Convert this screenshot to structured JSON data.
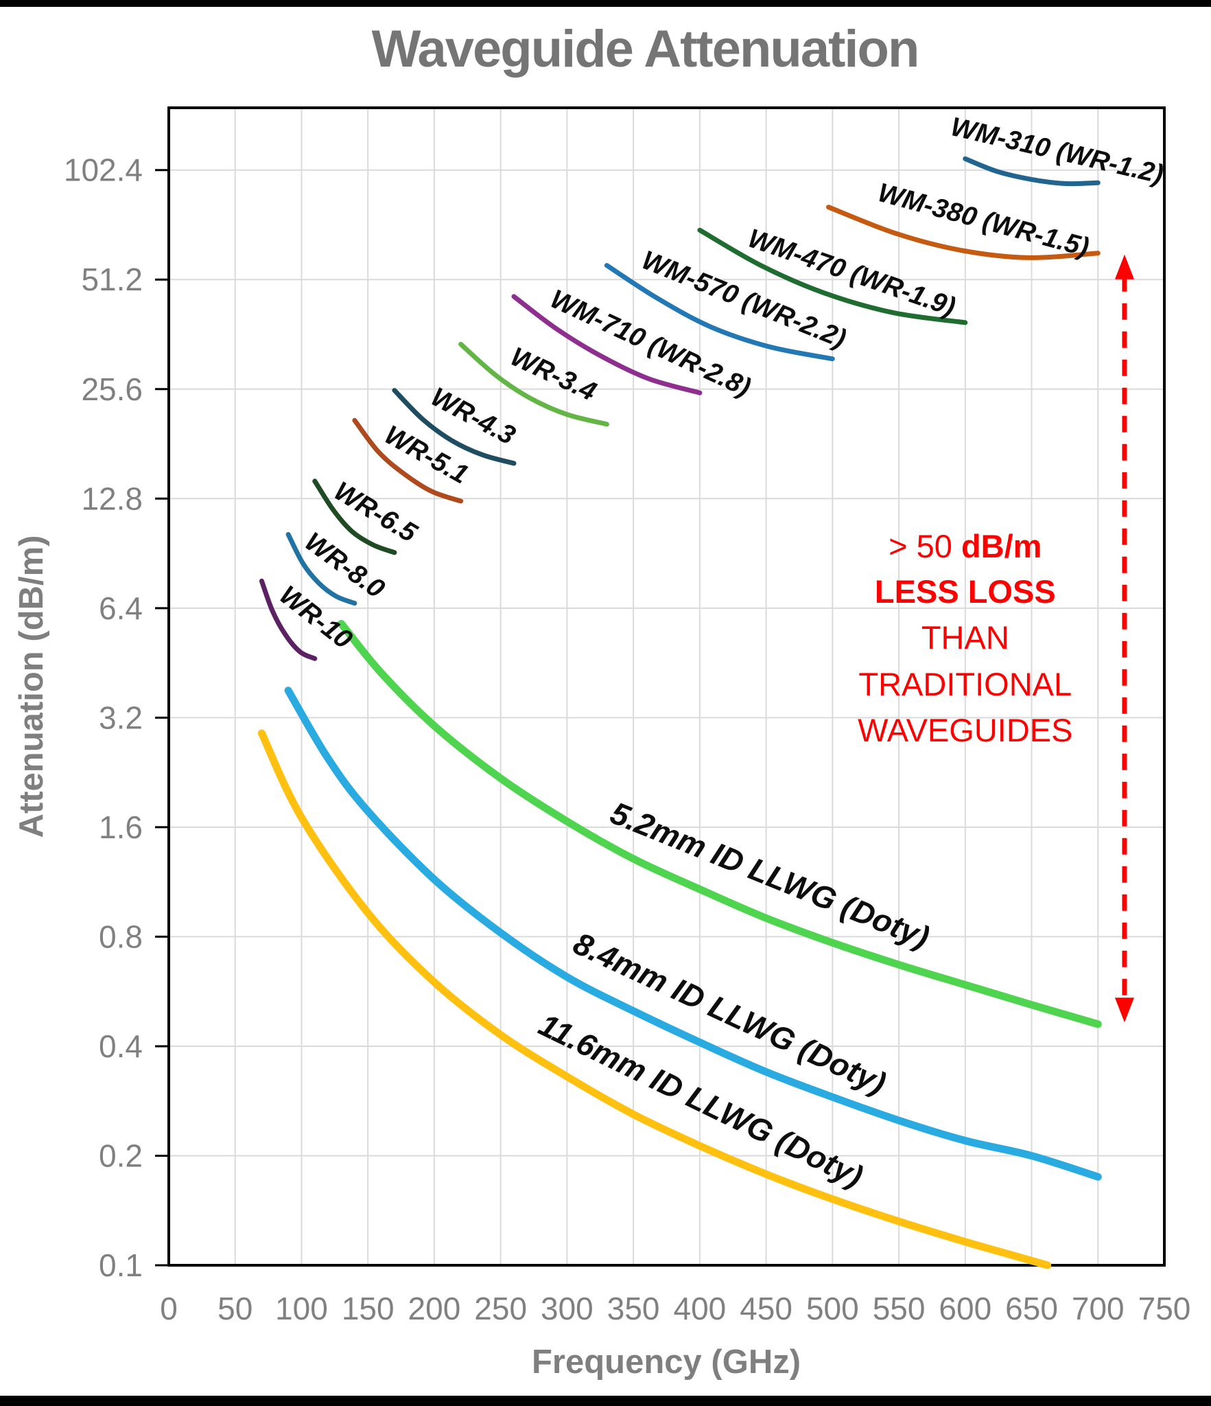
{
  "chart_data": {
    "type": "line",
    "title": "Waveguide Attenuation",
    "xlabel": "Frequency (GHz)",
    "ylabel": "Attenuation (dB/m)",
    "x_axis": {
      "min": 0,
      "max": 750,
      "ticks": [
        0,
        50,
        100,
        150,
        200,
        250,
        300,
        350,
        400,
        450,
        500,
        550,
        600,
        650,
        700,
        750
      ]
    },
    "y_axis": {
      "scale": "log2",
      "min": 0.1,
      "max": 151,
      "ticks": [
        "102.4",
        "51.2",
        "25.6",
        "12.8",
        "6.4",
        "3.2",
        "1.6",
        "0.8",
        "0.4",
        "0.2",
        "0.1"
      ]
    },
    "grid": true,
    "legend_position": "inline-labels",
    "series": [
      {
        "name": "WM-310 (WR-1.2)",
        "group": "traditional",
        "color": "#20648F",
        "stroke_width": 7,
        "label": {
          "text": "WM-310 (WR-1.2)",
          "f": 588,
          "a": 128,
          "rot": 13
        },
        "points": [
          [
            600,
            110
          ],
          [
            624,
            101.5
          ],
          [
            650,
            96.5
          ],
          [
            675,
            94.0
          ],
          [
            700,
            94.5
          ]
        ]
      },
      {
        "name": "WM-380 (WR-1.5)",
        "group": "traditional",
        "color": "#C55A11",
        "stroke_width": 7,
        "label": {
          "text": "WM-380 (WR-1.5)",
          "f": 533,
          "a": 84.5,
          "rot": 15
        },
        "points": [
          [
            497,
            81
          ],
          [
            548,
            68.5
          ],
          [
            598,
            61.5
          ],
          [
            648,
            58.8
          ],
          [
            700,
            60.5
          ]
        ]
      },
      {
        "name": "WM-470 (WR-1.9)",
        "group": "traditional",
        "color": "#1F6C31",
        "stroke_width": 7,
        "label": {
          "text": "WM-470 (WR-1.9)",
          "f": 435,
          "a": 63.5,
          "rot": 19
        },
        "points": [
          [
            400,
            70
          ],
          [
            446,
            56
          ],
          [
            494,
            47
          ],
          [
            546,
            41.5
          ],
          [
            600,
            39
          ]
        ]
      },
      {
        "name": "WM-570 (WR-2.2)",
        "group": "traditional",
        "color": "#2278B5",
        "stroke_width": 7,
        "label": {
          "text": "WM-570 (WR-2.2)",
          "f": 355,
          "a": 55.5,
          "rot": 22
        },
        "points": [
          [
            330,
            56
          ],
          [
            368,
            45.5
          ],
          [
            408,
            38
          ],
          [
            452,
            33.5
          ],
          [
            500,
            31
          ]
        ]
      },
      {
        "name": "WM-710 (WR-2.8)",
        "group": "traditional",
        "color": "#8E2F8F",
        "stroke_width": 7,
        "label": {
          "text": "WM-710 (WR-2.8)",
          "f": 286,
          "a": 43.5,
          "rot": 25
        },
        "points": [
          [
            260,
            46
          ],
          [
            292,
            37.5
          ],
          [
            326,
            31.5
          ],
          [
            362,
            27.3
          ],
          [
            400,
            25
          ]
        ]
      },
      {
        "name": "WR-3.4",
        "group": "traditional",
        "color": "#63B546",
        "stroke_width": 7,
        "label": {
          "text": "WR-3.4",
          "f": 256,
          "a": 30.2,
          "rot": 25
        },
        "points": [
          [
            220,
            34
          ],
          [
            246,
            28
          ],
          [
            272,
            24.2
          ],
          [
            300,
            21.8
          ],
          [
            330,
            20.5
          ]
        ]
      },
      {
        "name": "WR-4.3",
        "group": "traditional",
        "color": "#1E4D62",
        "stroke_width": 7,
        "label": {
          "text": "WR-4.3",
          "f": 196,
          "a": 23.5,
          "rot": 28
        },
        "points": [
          [
            170,
            25.4
          ],
          [
            191,
            21.2
          ],
          [
            213,
            18.5
          ],
          [
            236,
            16.9
          ],
          [
            260,
            16
          ]
        ]
      },
      {
        "name": "WR-5.1",
        "group": "traditional",
        "color": "#AE4A1E",
        "stroke_width": 7,
        "label": {
          "text": "WR-5.1",
          "f": 161,
          "a": 18.5,
          "rot": 29
        },
        "points": [
          [
            140,
            21
          ],
          [
            158,
            17.2
          ],
          [
            177,
            15
          ],
          [
            198,
            13.4
          ],
          [
            220,
            12.6
          ]
        ]
      },
      {
        "name": "WR-6.5",
        "group": "traditional",
        "color": "#1E4B22",
        "stroke_width": 7,
        "label": {
          "text": "WR-6.5",
          "f": 123,
          "a": 13.0,
          "rot": 31
        },
        "points": [
          [
            110,
            14.3
          ],
          [
            124,
            11.9
          ],
          [
            138,
            10.4
          ],
          [
            154,
            9.55
          ],
          [
            170,
            9.1
          ]
        ]
      },
      {
        "name": "WR-8.0",
        "group": "traditional",
        "color": "#2173A3",
        "stroke_width": 7,
        "label": {
          "text": "WR-8.0",
          "f": 101,
          "a": 9.5,
          "rot": 36
        },
        "points": [
          [
            90,
            10.2
          ],
          [
            101,
            8.5
          ],
          [
            113,
            7.5
          ],
          [
            126,
            6.9
          ],
          [
            140,
            6.6
          ]
        ]
      },
      {
        "name": "WR-10",
        "group": "traditional",
        "color": "#5C2162",
        "stroke_width": 7,
        "label": {
          "text": "WR-10",
          "f": 82,
          "a": 6.8,
          "rot": 38
        },
        "points": [
          [
            70,
            7.6
          ],
          [
            78,
            6.3
          ],
          [
            88,
            5.4
          ],
          [
            99,
            4.85
          ],
          [
            110,
            4.65
          ]
        ]
      },
      {
        "name": "5.2mm ID LLWG (Doty)",
        "group": "llwg",
        "color": "#4ED44E",
        "stroke_width": 11,
        "label": {
          "text": "5.2mm ID LLWG (Doty)",
          "f": 331,
          "a": 1.66,
          "rot": 22
        },
        "points": [
          [
            130,
            5.8
          ],
          [
            160,
            4.25
          ],
          [
            200,
            3.04
          ],
          [
            250,
            2.18
          ],
          [
            300,
            1.66
          ],
          [
            350,
            1.31
          ],
          [
            400,
            1.08
          ],
          [
            450,
            0.9
          ],
          [
            500,
            0.77
          ],
          [
            550,
            0.67
          ],
          [
            600,
            0.59
          ],
          [
            650,
            0.52
          ],
          [
            700,
            0.46
          ]
        ]
      },
      {
        "name": "8.4mm ID LLWG (Doty)",
        "group": "llwg",
        "color": "#29ABE2",
        "stroke_width": 11,
        "label": {
          "text": "8.4mm ID LLWG (Doty)",
          "f": 303,
          "a": 0.73,
          "rot": 25
        },
        "points": [
          [
            90,
            3.8
          ],
          [
            120,
            2.47
          ],
          [
            150,
            1.77
          ],
          [
            200,
            1.15
          ],
          [
            250,
            0.82
          ],
          [
            300,
            0.62
          ],
          [
            350,
            0.5
          ],
          [
            400,
            0.41
          ],
          [
            450,
            0.34
          ],
          [
            500,
            0.29
          ],
          [
            550,
            0.25
          ],
          [
            600,
            0.22
          ],
          [
            650,
            0.2
          ],
          [
            700,
            0.175
          ]
        ]
      },
      {
        "name": "11.6mm ID LLWG (Doty)",
        "group": "llwg",
        "color": "#FFC010",
        "stroke_width": 11,
        "label": {
          "text": "11.6mm ID LLWG (Doty)",
          "f": 277,
          "a": 0.437,
          "rot": 26
        },
        "points": [
          [
            70,
            2.9
          ],
          [
            100,
            1.7
          ],
          [
            150,
            0.93
          ],
          [
            200,
            0.6
          ],
          [
            250,
            0.43
          ],
          [
            300,
            0.33
          ],
          [
            350,
            0.26
          ],
          [
            400,
            0.213
          ],
          [
            450,
            0.178
          ],
          [
            500,
            0.152
          ],
          [
            550,
            0.132
          ],
          [
            600,
            0.116
          ],
          [
            630,
            0.108
          ],
          [
            662,
            0.1
          ]
        ]
      }
    ],
    "annotation": {
      "color": "#FF0000",
      "center_f": 600,
      "lines": [
        {
          "segments": [
            {
              "t": "> 50 ",
              "bold": false
            },
            {
              "t": "dB/m",
              "bold": true
            }
          ],
          "a": 9.45
        },
        {
          "segments": [
            {
              "t": "LESS LOSS",
              "bold": true
            }
          ],
          "a": 7.1
        },
        {
          "segments": [
            {
              "t": "THAN",
              "bold": false
            }
          ],
          "a": 5.3
        },
        {
          "segments": [
            {
              "t": "TRADITIONAL",
              "bold": false
            }
          ],
          "a": 3.95
        },
        {
          "segments": [
            {
              "t": "WAVEGUIDES",
              "bold": false
            }
          ],
          "a": 2.95
        }
      ],
      "arrow": {
        "f": 720,
        "a_top": 60,
        "a_bottom": 0.465,
        "dashed": true,
        "double_headed": true
      }
    }
  },
  "style": {
    "grid_color": "#DADADA",
    "axis_color": "#000000",
    "tick_label_color": "#808080",
    "title_color": "#757575",
    "axis_title_color": "#7F7F7F",
    "curve_label_color": "#0D0D0D",
    "annotation_color": "#FF0000"
  }
}
